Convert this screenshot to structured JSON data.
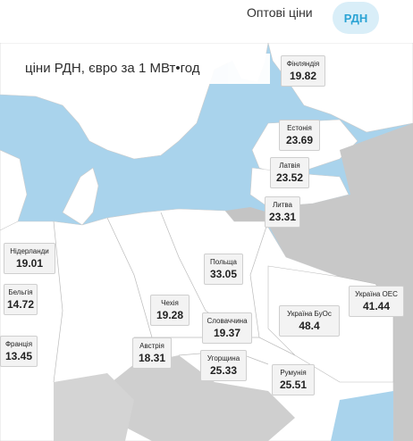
{
  "tabs": {
    "wholesale": "Оптові ціни",
    "rdn": "РДН"
  },
  "map": {
    "title": "ціни РДН, євро за 1 МВт•год"
  },
  "countries": [
    {
      "name": "Фінляндія",
      "price": "19.82"
    },
    {
      "name": "Естонія",
      "price": "23.69"
    },
    {
      "name": "Латвія",
      "price": "23.52"
    },
    {
      "name": "Литва",
      "price": "23.31"
    },
    {
      "name": "Нідерланди",
      "price": "19.01"
    },
    {
      "name": "Польща",
      "price": "33.05"
    },
    {
      "name": "Бельгія",
      "price": "14.72"
    },
    {
      "name": "Україна ОЕС",
      "price": "41.44"
    },
    {
      "name": "Чехія",
      "price": "19.28"
    },
    {
      "name": "Словаччина",
      "price": "19.37"
    },
    {
      "name": "Україна БуОс",
      "price": "48.4"
    },
    {
      "name": "Франція",
      "price": "13.45"
    },
    {
      "name": "Австрія",
      "price": "18.31"
    },
    {
      "name": "Угорщина",
      "price": "25.33"
    },
    {
      "name": "Румунія",
      "price": "25.51"
    }
  ]
}
